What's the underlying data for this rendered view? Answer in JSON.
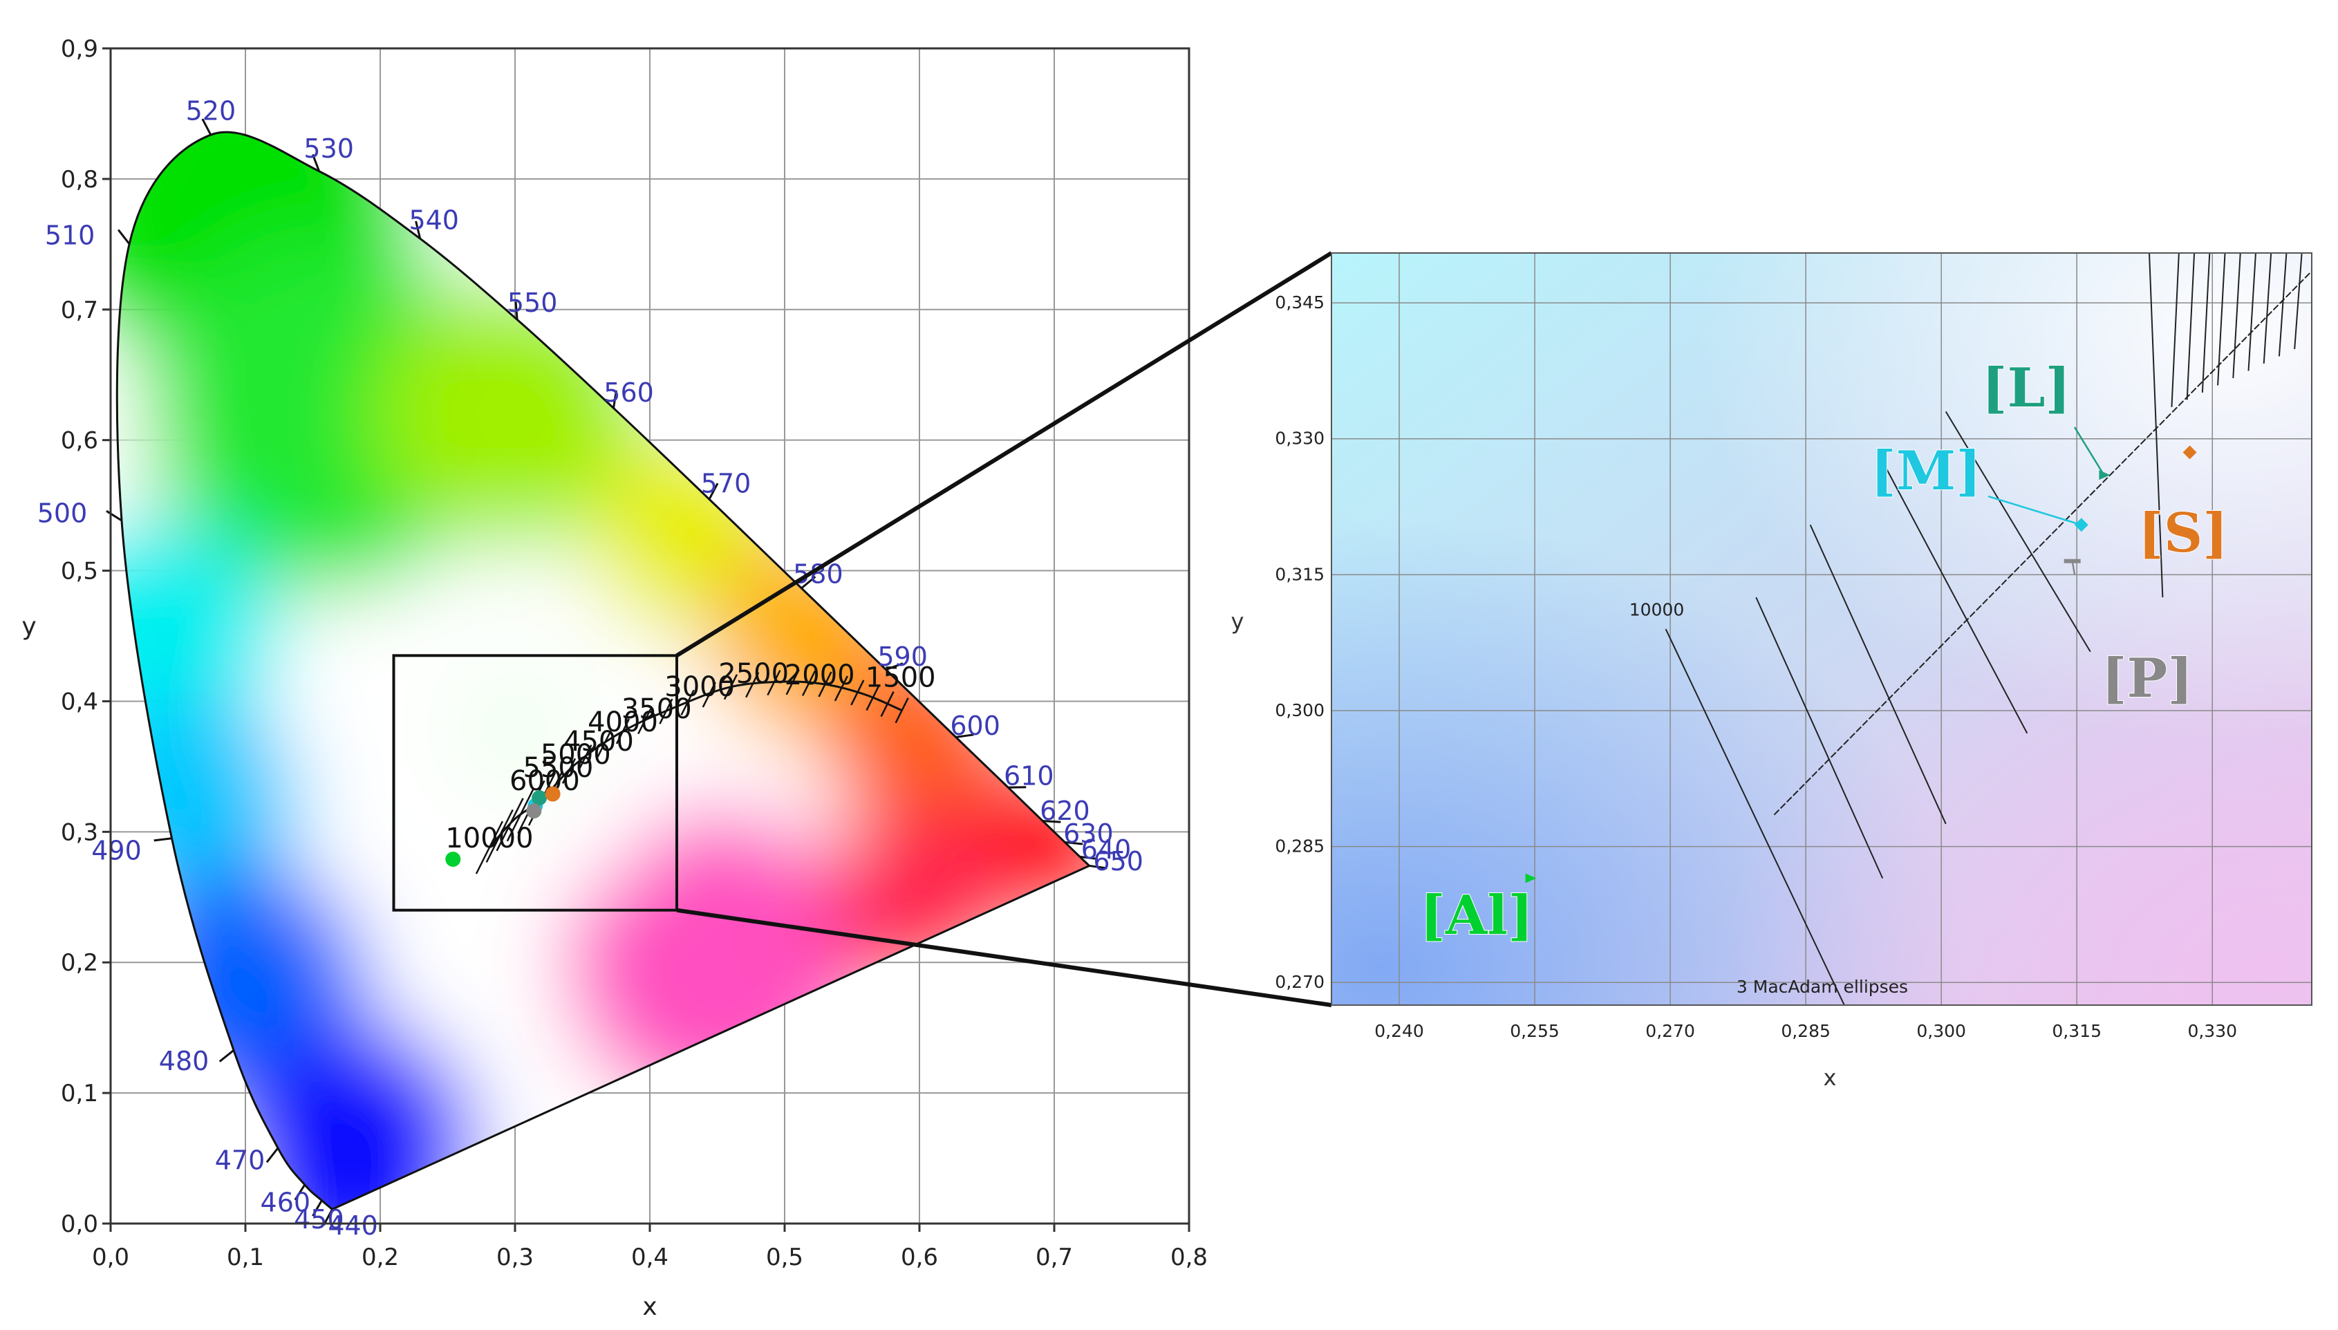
{
  "chart_data": [
    {
      "type": "scatter",
      "title": "",
      "xlabel": "x",
      "ylabel": "y",
      "xlim": [
        0,
        0.8
      ],
      "ylim": [
        0,
        0.9
      ],
      "grid": true,
      "x_tick_labels": [
        "0,0",
        "0,1",
        "0,2",
        "0,3",
        "0,4",
        "0,5",
        "0,6",
        "0,7",
        "0,8"
      ],
      "y_tick_labels": [
        "0,0",
        "0,1",
        "0,2",
        "0,3",
        "0,4",
        "0,5",
        "0,6",
        "0,7",
        "0,8",
        "0,9"
      ],
      "spectral_locus": [
        {
          "label": "440",
          "x": 0.1644,
          "y": 0.0109
        },
        {
          "label": "450",
          "x": 0.1566,
          "y": 0.0177
        },
        {
          "label": "460",
          "x": 0.144,
          "y": 0.0297
        },
        {
          "label": "470",
          "x": 0.1241,
          "y": 0.0578
        },
        {
          "label": "480",
          "x": 0.0913,
          "y": 0.1327
        },
        {
          "label": "490",
          "x": 0.0454,
          "y": 0.295
        },
        {
          "label": "500",
          "x": 0.0082,
          "y": 0.5384
        },
        {
          "label": "510",
          "x": 0.0139,
          "y": 0.7502
        },
        {
          "label": "520",
          "x": 0.0743,
          "y": 0.8338
        },
        {
          "label": "530",
          "x": 0.1547,
          "y": 0.8059
        },
        {
          "label": "540",
          "x": 0.2296,
          "y": 0.7543
        },
        {
          "label": "550",
          "x": 0.3016,
          "y": 0.6923
        },
        {
          "label": "560",
          "x": 0.3731,
          "y": 0.6245
        },
        {
          "label": "570",
          "x": 0.4441,
          "y": 0.5547
        },
        {
          "label": "580",
          "x": 0.5125,
          "y": 0.4866
        },
        {
          "label": "590",
          "x": 0.5752,
          "y": 0.4242
        },
        {
          "label": "600",
          "x": 0.627,
          "y": 0.3725
        },
        {
          "label": "610",
          "x": 0.6658,
          "y": 0.334
        },
        {
          "label": "620",
          "x": 0.6915,
          "y": 0.3083
        },
        {
          "label": "630",
          "x": 0.7079,
          "y": 0.292
        },
        {
          "label": "640",
          "x": 0.719,
          "y": 0.2809
        },
        {
          "label": "650",
          "x": 0.726,
          "y": 0.274
        }
      ],
      "cct_labels": [
        {
          "label": "10000",
          "x": 0.281,
          "y": 0.288
        },
        {
          "label": "6000",
          "x": 0.322,
          "y": 0.332
        },
        {
          "label": "5500",
          "x": 0.332,
          "y": 0.342
        },
        {
          "label": "5000",
          "x": 0.345,
          "y": 0.352
        },
        {
          "label": "4500",
          "x": 0.362,
          "y": 0.362
        },
        {
          "label": "4000",
          "x": 0.38,
          "y": 0.377
        },
        {
          "label": "3500",
          "x": 0.405,
          "y": 0.387
        },
        {
          "label": "3000",
          "x": 0.437,
          "y": 0.404
        },
        {
          "label": "2500",
          "x": 0.477,
          "y": 0.414
        },
        {
          "label": "2000",
          "x": 0.526,
          "y": 0.413
        },
        {
          "label": "1500",
          "x": 0.586,
          "y": 0.411
        }
      ],
      "zoom_box": {
        "xlim": [
          0.21,
          0.42
        ],
        "ylim": [
          0.24,
          0.435
        ]
      },
      "points": [
        {
          "name": "Al",
          "x": 0.254,
          "y": 0.279,
          "color": "#00d030"
        },
        {
          "name": "M",
          "x": 0.315,
          "y": 0.32,
          "color": "#1ec8e0"
        },
        {
          "name": "L",
          "x": 0.318,
          "y": 0.326,
          "color": "#1ea080"
        },
        {
          "name": "S",
          "x": 0.328,
          "y": 0.329,
          "color": "#e07820"
        },
        {
          "name": "P",
          "x": 0.314,
          "y": 0.316,
          "color": "#888888"
        }
      ]
    },
    {
      "type": "scatter",
      "title": "",
      "xlabel": "x",
      "ylabel": "y",
      "xlim": [
        0.2325,
        0.341
      ],
      "ylim": [
        0.2675,
        0.3505
      ],
      "grid": true,
      "x_tick_labels": [
        "0,240",
        "0,255",
        "0,270",
        "0,285",
        "0,300",
        "0,315",
        "0,330"
      ],
      "y_tick_labels": [
        "0,270",
        "0,285",
        "0,300",
        "0,315",
        "0,330",
        "0,345"
      ],
      "cct_label": {
        "label": "10000",
        "x": 0.2685,
        "y": 0.3105
      },
      "annotation": "3 MacAdam ellipses",
      "points": [
        {
          "name": "Al",
          "label": "[Al]",
          "x": 0.2545,
          "y": 0.2815,
          "color": "#00d030",
          "marker": "triangle"
        },
        {
          "name": "M",
          "label": "[M]",
          "x": 0.3155,
          "y": 0.3205,
          "color": "#1ec8e0",
          "marker": "diamond"
        },
        {
          "name": "L",
          "label": "[L]",
          "x": 0.318,
          "y": 0.326,
          "color": "#1ea080",
          "marker": "triangle"
        },
        {
          "name": "S",
          "label": "[S]",
          "x": 0.3275,
          "y": 0.3285,
          "color": "#e07820",
          "marker": "diamond"
        },
        {
          "name": "P",
          "label": "[P]",
          "x": 0.3145,
          "y": 0.3165,
          "color": "#888888",
          "marker": "dash"
        }
      ]
    }
  ]
}
